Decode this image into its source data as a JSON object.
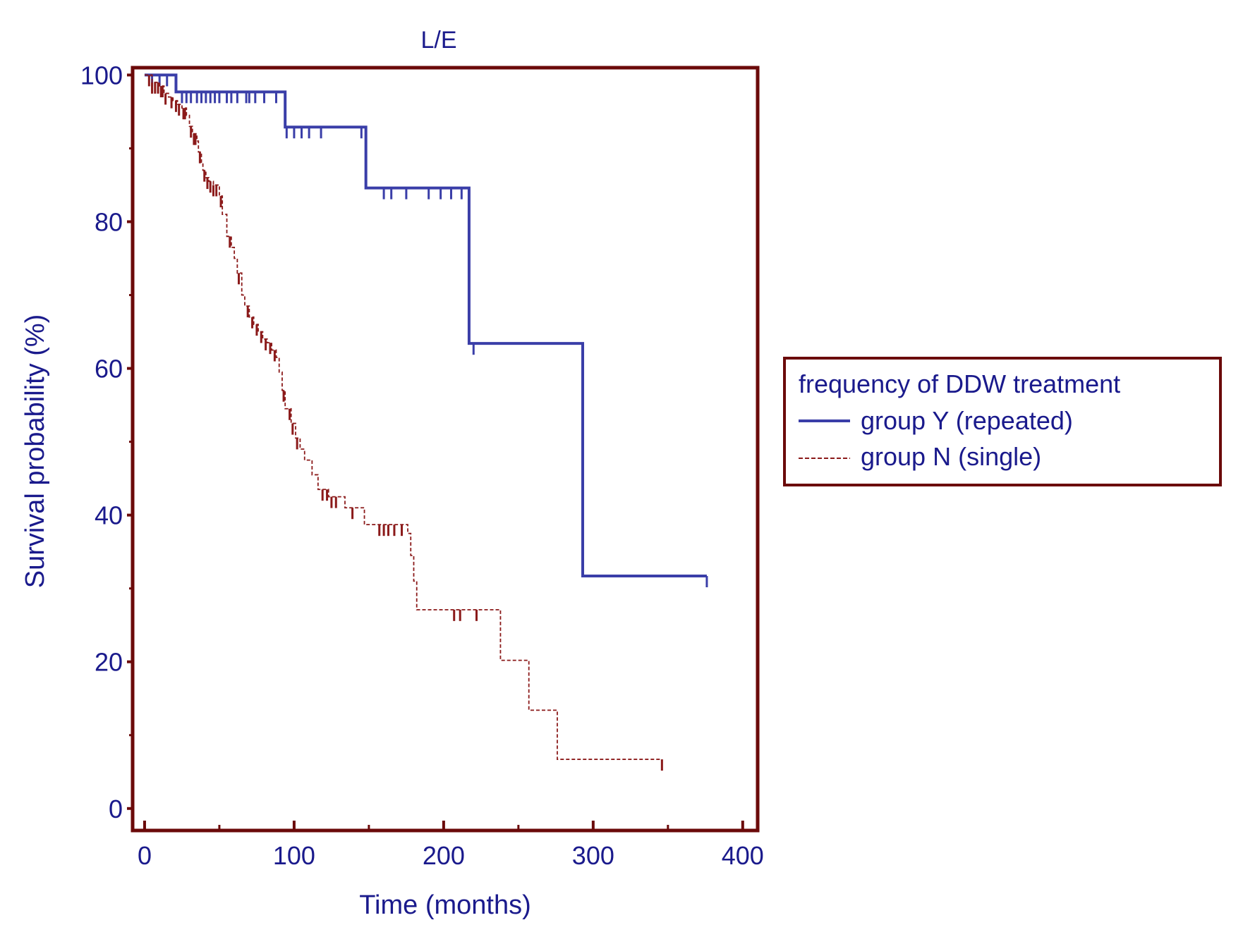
{
  "chart_data": {
    "type": "line",
    "subtype": "kaplan-meier step",
    "title": "L/E",
    "xlabel": "Time (months)",
    "ylabel": "Survival probability (%)",
    "xlim": [
      -8,
      410
    ],
    "ylim": [
      -3,
      101
    ],
    "xticks": [
      0,
      100,
      200,
      300,
      400
    ],
    "yticks": [
      0,
      20,
      40,
      60,
      80,
      100
    ],
    "grid": false,
    "legend": {
      "title": "frequency of DDW treatment",
      "placement": "right",
      "entries": [
        "group Y (repeated)",
        "group N (single)"
      ]
    },
    "colors": {
      "axis": "#6b0a0a",
      "text": "#1a1a8c",
      "groupY": "#3a3ea8",
      "groupN": "#8b1a1a"
    },
    "series": [
      {
        "name": "group Y (repeated)",
        "color": "#3a3ea8",
        "style": "solid",
        "steps": [
          [
            0,
            100
          ],
          [
            21,
            97.7
          ],
          [
            94,
            92.9
          ],
          [
            148,
            84.6
          ],
          [
            217,
            63.4
          ],
          [
            293,
            31.7
          ],
          [
            376,
            31.7
          ]
        ],
        "censored": [
          5,
          10,
          15,
          25,
          28,
          31,
          35,
          38,
          41,
          44,
          47,
          50,
          55,
          58,
          62,
          68,
          70,
          74,
          80,
          88,
          95,
          100,
          105,
          110,
          118,
          145,
          160,
          165,
          175,
          190,
          198,
          205,
          212,
          220,
          376
        ]
      },
      {
        "name": "group N (single)",
        "color": "#8b1a1a",
        "style": "dashed",
        "steps": [
          [
            0,
            100
          ],
          [
            5,
            99
          ],
          [
            10,
            98.5
          ],
          [
            13,
            97.5
          ],
          [
            16,
            97
          ],
          [
            19,
            96.5
          ],
          [
            22,
            96
          ],
          [
            25,
            95.5
          ],
          [
            28,
            94.5
          ],
          [
            30,
            93
          ],
          [
            32,
            92
          ],
          [
            35,
            91
          ],
          [
            36,
            89.5
          ],
          [
            38,
            88
          ],
          [
            39,
            87
          ],
          [
            41,
            86
          ],
          [
            43,
            85.5
          ],
          [
            46,
            85
          ],
          [
            50,
            83.5
          ],
          [
            52,
            81
          ],
          [
            55,
            78
          ],
          [
            58,
            76.5
          ],
          [
            60,
            75
          ],
          [
            62,
            73
          ],
          [
            65,
            70
          ],
          [
            67,
            68.5
          ],
          [
            70,
            67
          ],
          [
            73,
            66
          ],
          [
            76,
            65
          ],
          [
            79,
            64
          ],
          [
            82,
            63.5
          ],
          [
            85,
            62.5
          ],
          [
            88,
            61.5
          ],
          [
            90,
            59.5
          ],
          [
            92,
            57
          ],
          [
            94,
            54.5
          ],
          [
            98,
            52.5
          ],
          [
            101,
            50.5
          ],
          [
            104,
            49
          ],
          [
            107,
            47.5
          ],
          [
            112,
            45.5
          ],
          [
            116,
            43.5
          ],
          [
            123,
            42.5
          ],
          [
            134,
            41
          ],
          [
            147,
            38.7
          ],
          [
            176,
            37.5
          ],
          [
            178,
            34.5
          ],
          [
            180,
            31
          ],
          [
            182,
            27.1
          ],
          [
            238,
            20.2
          ],
          [
            257,
            13.4
          ],
          [
            276,
            6.7
          ],
          [
            346,
            6.7
          ]
        ],
        "censored": [
          3,
          5,
          7,
          9,
          11,
          12,
          14,
          18,
          21,
          23,
          26,
          27,
          31,
          33,
          34,
          37,
          40,
          42,
          44,
          46,
          48,
          51,
          57,
          63,
          69,
          72,
          75,
          78,
          81,
          84,
          87,
          93,
          97,
          99,
          102,
          119,
          122,
          125,
          128,
          139,
          157,
          160,
          163,
          167,
          172,
          207,
          211,
          222,
          346
        ]
      }
    ]
  }
}
